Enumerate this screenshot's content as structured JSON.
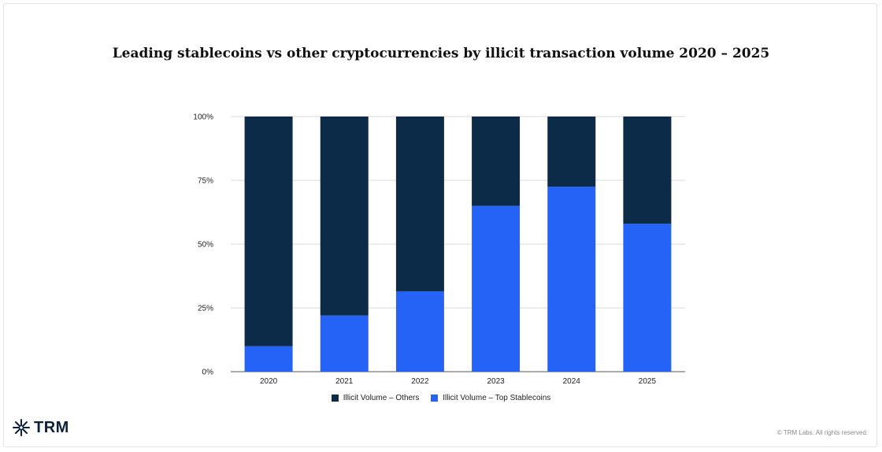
{
  "chart_data": {
    "type": "bar",
    "stacked": true,
    "title": "Leading stablecoins vs other cryptocurrencies by illicit transaction volume 2020 – 2025",
    "categories": [
      "2020",
      "2021",
      "2022",
      "2023",
      "2024",
      "2025"
    ],
    "series": [
      {
        "name": "Illicit Volume – Top Stablecoins",
        "color": "#2463f5",
        "values": [
          10,
          22,
          31.5,
          65,
          72.5,
          58
        ]
      },
      {
        "name": "Illicit Volume – Others",
        "color": "#0c2b48",
        "values": [
          90,
          78,
          68.5,
          35,
          27.5,
          42
        ]
      }
    ],
    "yticks": [
      0,
      25,
      50,
      75,
      100
    ],
    "ytick_labels": [
      "0%",
      "25%",
      "50%",
      "75%",
      "100%"
    ],
    "ylim": [
      0,
      100
    ],
    "grid": true,
    "legend_position": "bottom"
  },
  "legend": {
    "others_label": "Illicit Volume – Others",
    "stablecoins_label": "Illicit Volume – Top Stablecoins",
    "others_color": "#0c2b48",
    "stablecoins_color": "#2463f5"
  },
  "brand": {
    "name": "TRM",
    "icon": "snowflake-icon",
    "color": "#0c2238"
  },
  "footer": {
    "copyright": "© TRM Labs. All rights reserved."
  }
}
